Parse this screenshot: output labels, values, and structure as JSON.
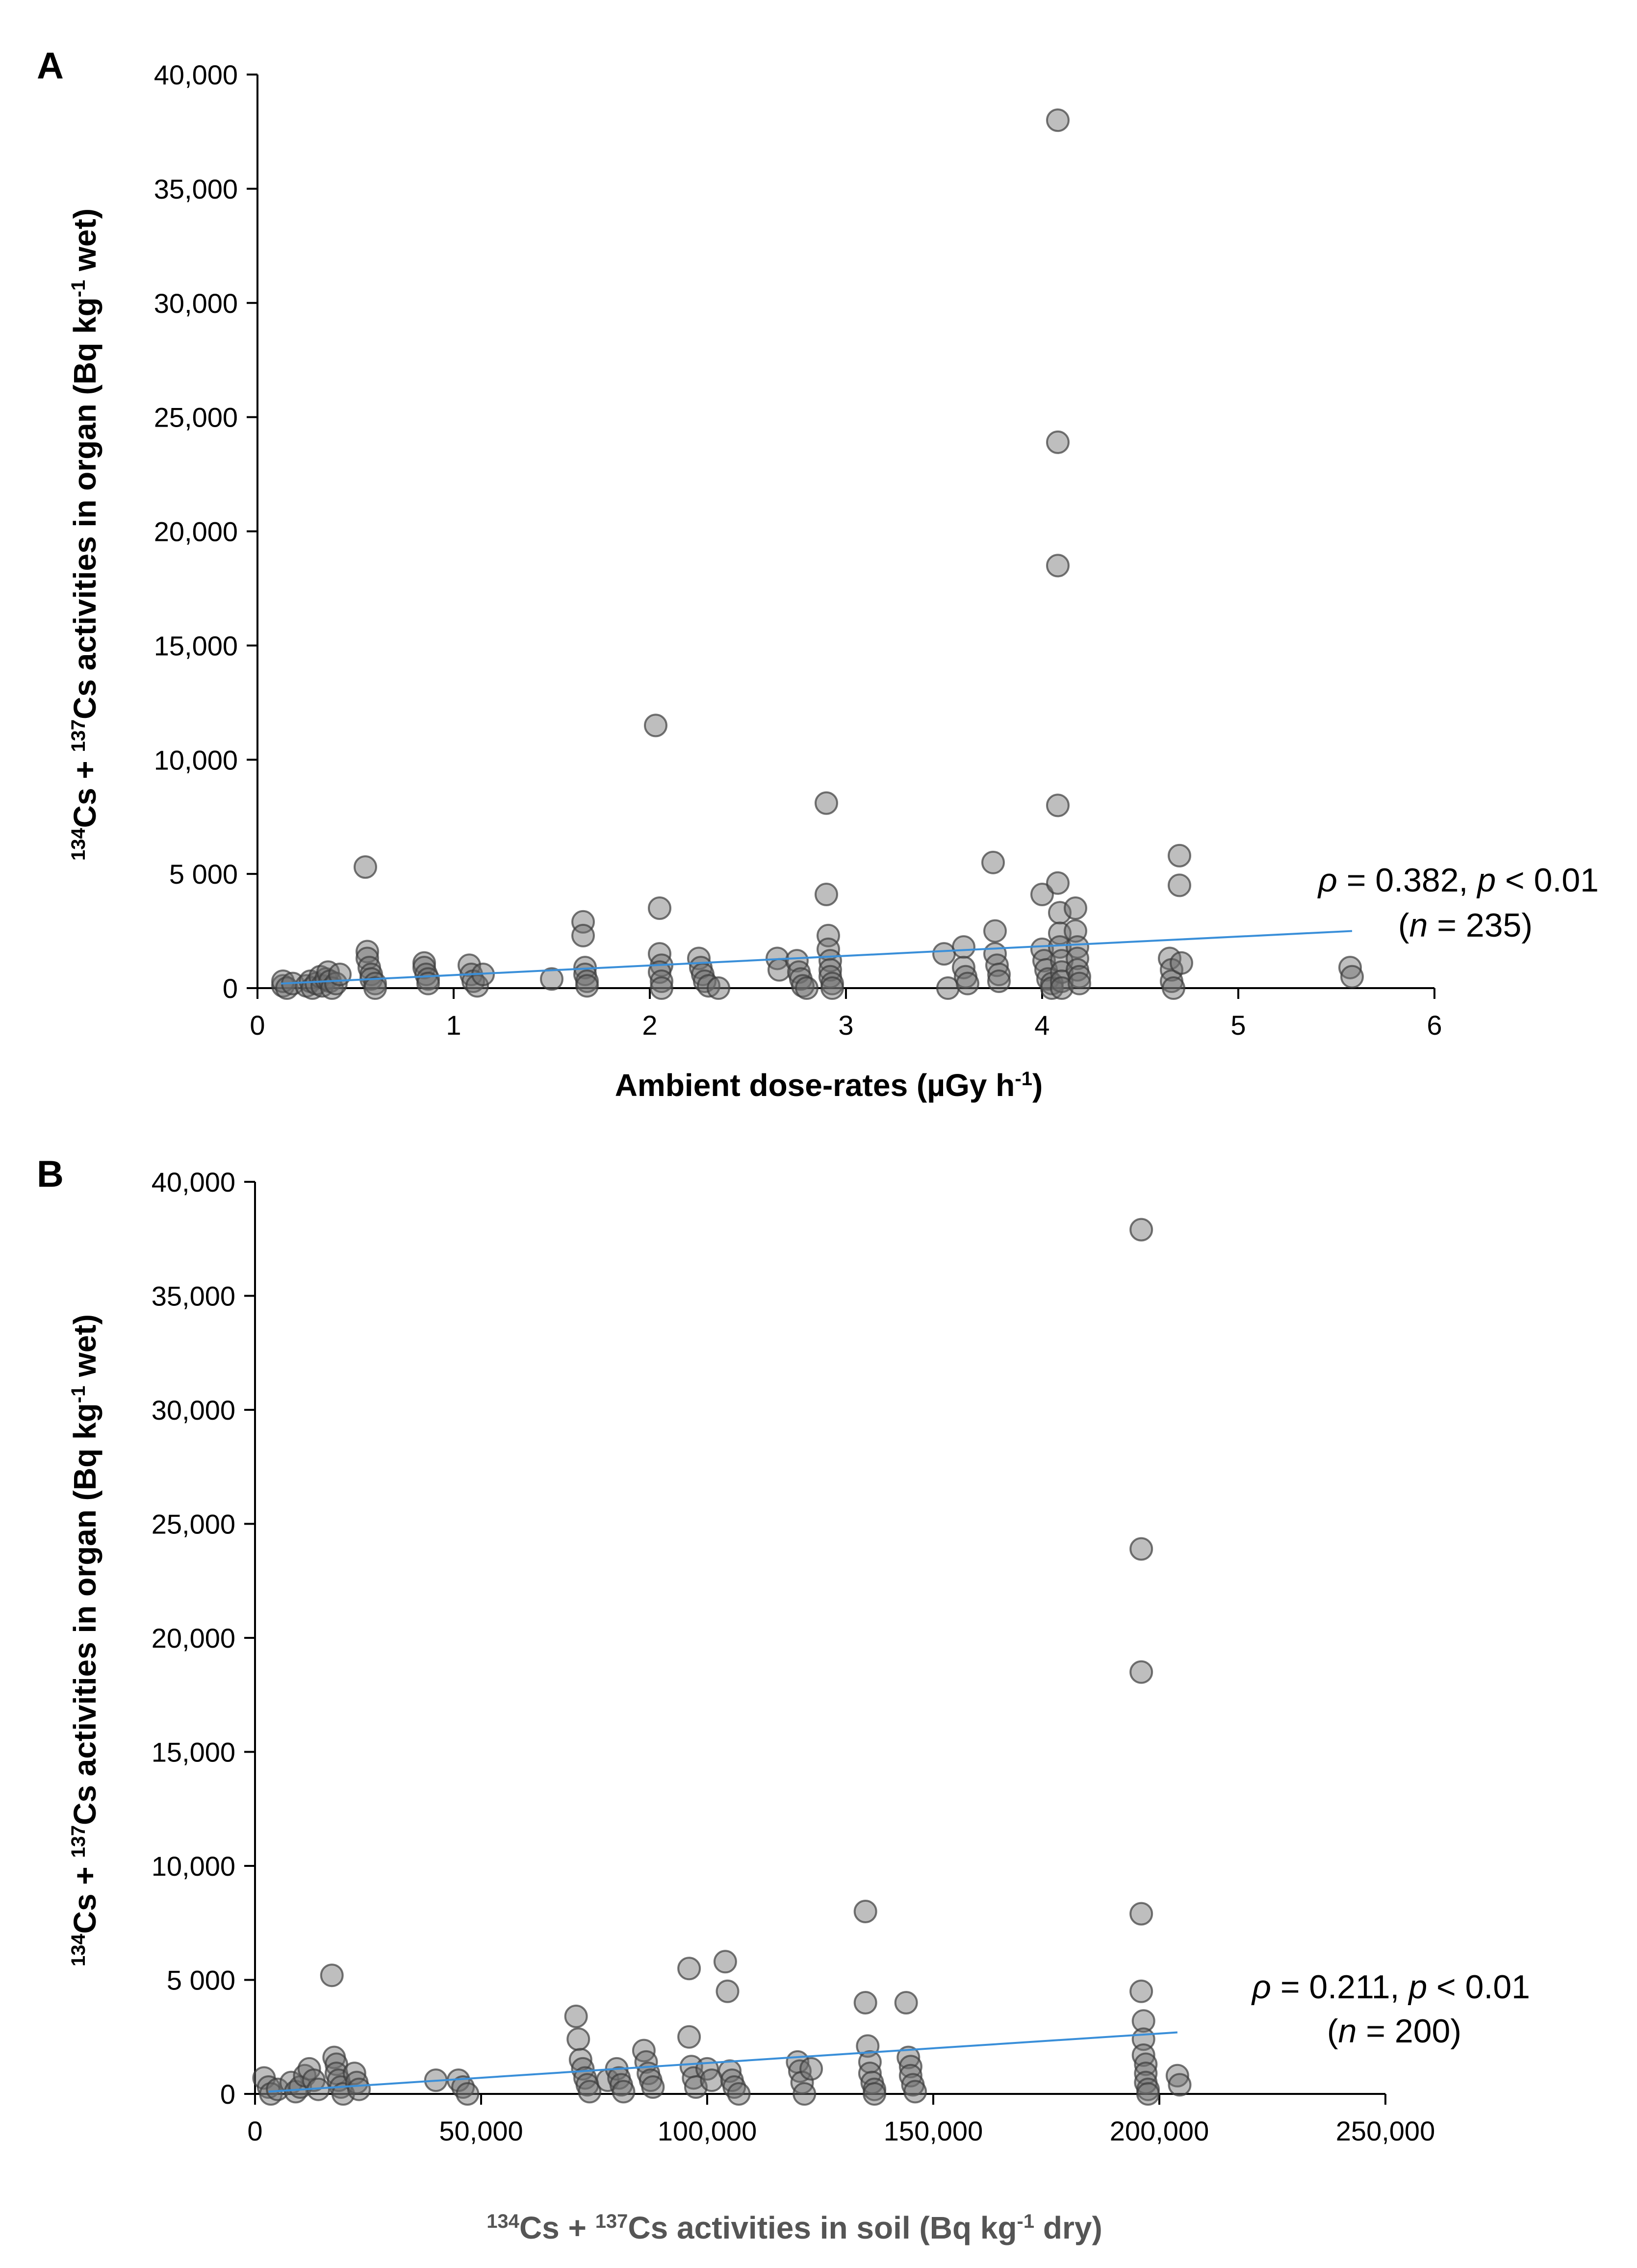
{
  "chart_data": [
    {
      "type": "scatter",
      "panel": "A",
      "ylabel": {
        "sup1": "134",
        "part1": "Cs + ",
        "sup2": "137",
        "part2": "Cs activities in organ (Bq kg",
        "sup3": "-1",
        "part3": " wet)"
      },
      "xlabel": {
        "main": "Ambient dose-rates (µGy h",
        "sup": "-1",
        "end": ")"
      },
      "xlim": [
        0,
        6
      ],
      "ylim": [
        0,
        40000
      ],
      "xticks": [
        0,
        1,
        2,
        3,
        4,
        5,
        6
      ],
      "xtick_labels": [
        "0",
        "1",
        "2",
        "3",
        "4",
        "5",
        "6"
      ],
      "yticks": [
        0,
        5000,
        10000,
        15000,
        20000,
        25000,
        30000,
        35000,
        40000
      ],
      "ytick_labels": [
        "0",
        "5 000",
        "10,000",
        "15,000",
        "20,000",
        "25,000",
        "30,000",
        "35,000",
        "40,000"
      ],
      "annotation": {
        "rho_symbol": "ρ",
        "rho_text": " = 0.382, ",
        "p_symbol": "p",
        "p_text": " < 0.01",
        "n_open": "(",
        "n_symbol": "n",
        "n_text": " = 235)"
      },
      "trendline": {
        "x": [
          0.12,
          5.58
        ],
        "y": [
          200,
          2500
        ]
      },
      "points": [
        [
          0.13,
          100
        ],
        [
          0.13,
          300
        ],
        [
          0.15,
          0
        ],
        [
          0.18,
          200
        ],
        [
          0.25,
          100
        ],
        [
          0.27,
          300
        ],
        [
          0.28,
          0
        ],
        [
          0.3,
          200
        ],
        [
          0.32,
          500
        ],
        [
          0.33,
          100
        ],
        [
          0.35,
          400
        ],
        [
          0.36,
          700
        ],
        [
          0.37,
          300
        ],
        [
          0.38,
          0
        ],
        [
          0.4,
          200
        ],
        [
          0.42,
          600
        ],
        [
          0.55,
          5300
        ],
        [
          0.56,
          1600
        ],
        [
          0.56,
          1300
        ],
        [
          0.57,
          900
        ],
        [
          0.58,
          600
        ],
        [
          0.58,
          400
        ],
        [
          0.6,
          200
        ],
        [
          0.6,
          0
        ],
        [
          0.85,
          1100
        ],
        [
          0.85,
          900
        ],
        [
          0.86,
          600
        ],
        [
          0.87,
          400
        ],
        [
          0.87,
          200
        ],
        [
          1.08,
          1000
        ],
        [
          1.09,
          600
        ],
        [
          1.1,
          300
        ],
        [
          1.12,
          100
        ],
        [
          1.15,
          600
        ],
        [
          1.5,
          400
        ],
        [
          1.66,
          2900
        ],
        [
          1.66,
          2300
        ],
        [
          1.67,
          900
        ],
        [
          1.67,
          600
        ],
        [
          1.68,
          300
        ],
        [
          1.68,
          100
        ],
        [
          2.03,
          11500
        ],
        [
          2.05,
          3500
        ],
        [
          2.05,
          1500
        ],
        [
          2.06,
          1000
        ],
        [
          2.05,
          700
        ],
        [
          2.06,
          300
        ],
        [
          2.06,
          0
        ],
        [
          2.25,
          1300
        ],
        [
          2.26,
          900
        ],
        [
          2.27,
          600
        ],
        [
          2.28,
          300
        ],
        [
          2.3,
          100
        ],
        [
          2.35,
          0
        ],
        [
          2.65,
          1300
        ],
        [
          2.66,
          800
        ],
        [
          2.75,
          1200
        ],
        [
          2.76,
          700
        ],
        [
          2.77,
          400
        ],
        [
          2.78,
          100
        ],
        [
          2.8,
          0
        ],
        [
          2.9,
          8100
        ],
        [
          2.9,
          4100
        ],
        [
          2.91,
          2300
        ],
        [
          2.91,
          1700
        ],
        [
          2.92,
          1200
        ],
        [
          2.92,
          800
        ],
        [
          2.92,
          500
        ],
        [
          2.93,
          200
        ],
        [
          2.93,
          0
        ],
        [
          3.5,
          1500
        ],
        [
          3.52,
          0
        ],
        [
          3.6,
          1800
        ],
        [
          3.6,
          900
        ],
        [
          3.61,
          500
        ],
        [
          3.62,
          200
        ],
        [
          3.75,
          5500
        ],
        [
          3.76,
          2500
        ],
        [
          3.76,
          1500
        ],
        [
          3.77,
          1000
        ],
        [
          3.78,
          600
        ],
        [
          3.78,
          300
        ],
        [
          4.0,
          4100
        ],
        [
          4.0,
          1700
        ],
        [
          4.01,
          1200
        ],
        [
          4.02,
          800
        ],
        [
          4.03,
          400
        ],
        [
          4.05,
          200
        ],
        [
          4.05,
          0
        ],
        [
          4.08,
          38000
        ],
        [
          4.08,
          23900
        ],
        [
          4.08,
          18500
        ],
        [
          4.08,
          8000
        ],
        [
          4.08,
          4600
        ],
        [
          4.09,
          3300
        ],
        [
          4.09,
          2400
        ],
        [
          4.09,
          1800
        ],
        [
          4.1,
          1200
        ],
        [
          4.1,
          700
        ],
        [
          4.1,
          300
        ],
        [
          4.1,
          0
        ],
        [
          4.17,
          3500
        ],
        [
          4.17,
          2500
        ],
        [
          4.18,
          1800
        ],
        [
          4.18,
          1300
        ],
        [
          4.18,
          800
        ],
        [
          4.19,
          500
        ],
        [
          4.19,
          200
        ],
        [
          4.65,
          1300
        ],
        [
          4.66,
          800
        ],
        [
          4.66,
          300
        ],
        [
          4.67,
          0
        ],
        [
          4.7,
          5800
        ],
        [
          4.7,
          4500
        ],
        [
          4.71,
          1100
        ],
        [
          5.57,
          900
        ],
        [
          5.58,
          500
        ]
      ]
    },
    {
      "type": "scatter",
      "panel": "B",
      "ylabel": {
        "sup1": "134",
        "part1": "Cs + ",
        "sup2": "137",
        "part2": "Cs activities in organ (Bq kg",
        "sup3": "-1",
        "part3": " wet)"
      },
      "xlabel": {
        "sup1": "134",
        "part1": "Cs + ",
        "sup2": "137",
        "part2": "Cs activities in soil (Bq kg",
        "sup3": "-1",
        "part3": " dry)"
      },
      "xlim": [
        0,
        250000
      ],
      "ylim": [
        0,
        40000
      ],
      "xticks": [
        0,
        50000,
        100000,
        150000,
        200000,
        250000
      ],
      "xtick_labels": [
        "0",
        "50,000",
        "100,000",
        "150,000",
        "200,000",
        "250,000"
      ],
      "yticks": [
        0,
        5000,
        10000,
        15000,
        20000,
        25000,
        30000,
        35000,
        40000
      ],
      "ytick_labels": [
        "0",
        "5 000",
        "10,000",
        "15,000",
        "20,000",
        "25,000",
        "30,000",
        "35,000",
        "40,000"
      ],
      "annotation": {
        "rho_symbol": "ρ",
        "rho_text": " = 0.211, ",
        "p_symbol": "p",
        "p_text": " < 0.01",
        "n_open": "(",
        "n_symbol": "n",
        "n_text": " = 200)"
      },
      "trendline": {
        "x": [
          3000,
          204000
        ],
        "y": [
          100,
          2700
        ]
      },
      "points": [
        [
          2000,
          700
        ],
        [
          3000,
          300
        ],
        [
          3500,
          0
        ],
        [
          5000,
          200
        ],
        [
          8000,
          500
        ],
        [
          9000,
          100
        ],
        [
          10000,
          300
        ],
        [
          11000,
          800
        ],
        [
          12000,
          1100
        ],
        [
          13000,
          600
        ],
        [
          14000,
          200
        ],
        [
          17000,
          5200
        ],
        [
          17500,
          1600
        ],
        [
          18000,
          1300
        ],
        [
          18000,
          900
        ],
        [
          18500,
          600
        ],
        [
          19000,
          300
        ],
        [
          19500,
          0
        ],
        [
          22000,
          900
        ],
        [
          22500,
          500
        ],
        [
          23000,
          200
        ],
        [
          40000,
          600
        ],
        [
          45000,
          600
        ],
        [
          46000,
          300
        ],
        [
          47000,
          0
        ],
        [
          71000,
          3400
        ],
        [
          71500,
          2400
        ],
        [
          72000,
          1500
        ],
        [
          72500,
          1100
        ],
        [
          73000,
          700
        ],
        [
          73500,
          400
        ],
        [
          74000,
          100
        ],
        [
          78000,
          600
        ],
        [
          80000,
          1100
        ],
        [
          80500,
          700
        ],
        [
          81000,
          400
        ],
        [
          81500,
          100
        ],
        [
          86000,
          1900
        ],
        [
          86500,
          1400
        ],
        [
          87000,
          900
        ],
        [
          87500,
          600
        ],
        [
          88000,
          300
        ],
        [
          96000,
          5500
        ],
        [
          96000,
          2500
        ],
        [
          96500,
          1200
        ],
        [
          97000,
          700
        ],
        [
          97500,
          300
        ],
        [
          100000,
          1100
        ],
        [
          101000,
          600
        ],
        [
          104000,
          5800
        ],
        [
          104500,
          4500
        ],
        [
          105000,
          1000
        ],
        [
          105500,
          600
        ],
        [
          106000,
          300
        ],
        [
          107000,
          0
        ],
        [
          120000,
          1400
        ],
        [
          120500,
          1000
        ],
        [
          121000,
          500
        ],
        [
          121500,
          0
        ],
        [
          123000,
          1100
        ],
        [
          135000,
          8000
        ],
        [
          135000,
          4000
        ],
        [
          135500,
          2100
        ],
        [
          136000,
          1400
        ],
        [
          136000,
          900
        ],
        [
          136500,
          500
        ],
        [
          137000,
          200
        ],
        [
          137000,
          0
        ],
        [
          144000,
          4000
        ],
        [
          144500,
          1600
        ],
        [
          145000,
          1200
        ],
        [
          145000,
          800
        ],
        [
          145500,
          400
        ],
        [
          146000,
          100
        ],
        [
          196000,
          37900
        ],
        [
          196000,
          23900
        ],
        [
          196000,
          18500
        ],
        [
          196000,
          7900
        ],
        [
          196000,
          4500
        ],
        [
          196500,
          3200
        ],
        [
          196500,
          2400
        ],
        [
          196500,
          1700
        ],
        [
          197000,
          1300
        ],
        [
          197000,
          900
        ],
        [
          197000,
          500
        ],
        [
          197500,
          200
        ],
        [
          197500,
          0
        ],
        [
          204000,
          800
        ],
        [
          204500,
          400
        ]
      ]
    }
  ]
}
